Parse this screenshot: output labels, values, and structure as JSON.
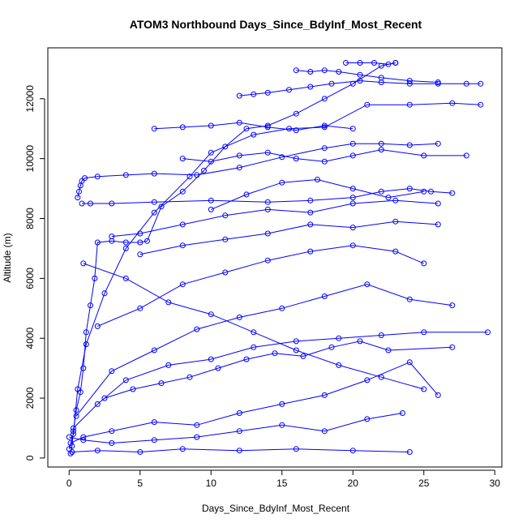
{
  "chart_data": {
    "type": "line",
    "title": "ATOM3 Northbound Days_Since_BdyInf_Most_Recent",
    "xlabel": "Days_Since_BdyInf_Most_Recent",
    "ylabel": "Altitude (m)",
    "xlim": [
      -1.5,
      30.5
    ],
    "ylim": [
      -300,
      13700
    ],
    "xticks": [
      "0",
      "5",
      "10",
      "15",
      "20",
      "25",
      "30"
    ],
    "yticks": [
      "0",
      "2000",
      "4000",
      "6000",
      "8000",
      "10000",
      "12000"
    ],
    "style": {
      "color": "#0000ff",
      "marker": "open-circle",
      "lines": true
    },
    "series": [
      {
        "points": [
          [
            0.1,
            150
          ],
          [
            0.2,
            400
          ],
          [
            0.3,
            900
          ],
          [
            0.5,
            1600
          ],
          [
            0.8,
            2200
          ],
          [
            1.0,
            3000
          ],
          [
            1.2,
            4200
          ],
          [
            1.5,
            5100
          ],
          [
            1.8,
            6000
          ],
          [
            2.0,
            7200
          ],
          [
            3.0,
            7250
          ],
          [
            4.0,
            7200
          ],
          [
            5.0,
            7200
          ],
          [
            5.5,
            7250
          ],
          [
            6.5,
            8400
          ],
          [
            8.0,
            8900
          ],
          [
            9.5,
            9600
          ],
          [
            11.0,
            10400
          ],
          [
            12.5,
            11000
          ],
          [
            14.0,
            11100
          ],
          [
            16.0,
            11500
          ],
          [
            18.0,
            12000
          ],
          [
            20.0,
            12500
          ],
          [
            22.0,
            13100
          ],
          [
            23.0,
            13200
          ]
        ]
      },
      {
        "points": [
          [
            0.0,
            300
          ],
          [
            0.3,
            800
          ],
          [
            0.6,
            2300
          ],
          [
            1.2,
            3800
          ],
          [
            2.5,
            5500
          ],
          [
            4.0,
            7000
          ],
          [
            6.0,
            8200
          ],
          [
            8.5,
            9400
          ],
          [
            10.0,
            10200
          ],
          [
            13.0,
            10800
          ],
          [
            15.5,
            11000
          ],
          [
            18.0,
            11050
          ],
          [
            21.0,
            11800
          ],
          [
            24.0,
            11800
          ],
          [
            27.0,
            11850
          ],
          [
            29.0,
            11800
          ]
        ]
      },
      {
        "points": [
          [
            0.6,
            8700
          ],
          [
            0.7,
            8900
          ],
          [
            0.8,
            9100
          ],
          [
            0.9,
            9250
          ],
          [
            1.1,
            9350
          ],
          [
            2.0,
            9400
          ],
          [
            4.0,
            9450
          ],
          [
            6.0,
            9500
          ],
          [
            9.0,
            9450
          ],
          [
            12.0,
            9700
          ],
          [
            15.0,
            10050
          ],
          [
            18.0,
            10350
          ],
          [
            20.0,
            10500
          ],
          [
            22.0,
            10500
          ],
          [
            24.0,
            10450
          ],
          [
            26.0,
            10500
          ]
        ]
      },
      {
        "points": [
          [
            0.9,
            8500
          ],
          [
            1.5,
            8500
          ],
          [
            3.0,
            8500
          ],
          [
            6.0,
            8550
          ],
          [
            10.0,
            8600
          ],
          [
            14.0,
            8550
          ],
          [
            17.0,
            8600
          ],
          [
            20.0,
            8700
          ],
          [
            22.0,
            8900
          ],
          [
            24.0,
            9000
          ],
          [
            25.5,
            8900
          ],
          [
            27.0,
            8850
          ]
        ]
      },
      {
        "points": [
          [
            0.2,
            200
          ],
          [
            2.0,
            250
          ],
          [
            5.0,
            200
          ],
          [
            8.0,
            300
          ],
          [
            12.0,
            250
          ],
          [
            16.0,
            300
          ],
          [
            20.0,
            250
          ],
          [
            24.0,
            200
          ]
        ]
      },
      {
        "points": [
          [
            0.1,
            500
          ],
          [
            1.0,
            700
          ],
          [
            3.0,
            900
          ],
          [
            6.0,
            1200
          ],
          [
            9.0,
            1100
          ],
          [
            12.0,
            1500
          ],
          [
            15.0,
            1800
          ],
          [
            18.0,
            2100
          ],
          [
            21.0,
            2600
          ],
          [
            24.0,
            3200
          ],
          [
            26.0,
            2100
          ]
        ]
      },
      {
        "points": [
          [
            0.3,
            1000
          ],
          [
            2.0,
            1800
          ],
          [
            4.0,
            2600
          ],
          [
            7.0,
            3100
          ],
          [
            10.0,
            3300
          ],
          [
            13.0,
            3700
          ],
          [
            16.0,
            3900
          ],
          [
            19.0,
            4000
          ],
          [
            22.0,
            4100
          ],
          [
            25.0,
            4200
          ],
          [
            29.5,
            4200
          ]
        ]
      },
      {
        "points": [
          [
            0.5,
            1400
          ],
          [
            3.0,
            2900
          ],
          [
            6.0,
            3600
          ],
          [
            9.0,
            4300
          ],
          [
            12.0,
            4700
          ],
          [
            15.0,
            5000
          ],
          [
            18.0,
            5400
          ],
          [
            21.0,
            5800
          ],
          [
            24.0,
            5300
          ],
          [
            27.0,
            5100
          ]
        ]
      },
      {
        "points": [
          [
            2.0,
            4400
          ],
          [
            5.0,
            5000
          ],
          [
            8.0,
            5800
          ],
          [
            11.0,
            6200
          ],
          [
            14.0,
            6600
          ],
          [
            17.0,
            6900
          ],
          [
            20.0,
            7100
          ],
          [
            23.0,
            6900
          ],
          [
            25.0,
            6500
          ]
        ]
      },
      {
        "points": [
          [
            6.0,
            11000
          ],
          [
            8.0,
            11050
          ],
          [
            10.0,
            11100
          ],
          [
            12.0,
            11200
          ],
          [
            14.0,
            11050
          ],
          [
            16.0,
            10950
          ],
          [
            18.0,
            11100
          ],
          [
            20.0,
            11000
          ]
        ]
      },
      {
        "points": [
          [
            12.0,
            12100
          ],
          [
            13.0,
            12150
          ],
          [
            14.0,
            12200
          ],
          [
            15.5,
            12300
          ],
          [
            17.0,
            12400
          ],
          [
            18.5,
            12500
          ],
          [
            20.5,
            12600
          ],
          [
            22.0,
            12550
          ],
          [
            24.0,
            12500
          ],
          [
            26.0,
            12500
          ],
          [
            28.0,
            12500
          ],
          [
            29.0,
            12500
          ]
        ]
      },
      {
        "points": [
          [
            19.5,
            13200
          ],
          [
            20.5,
            13200
          ],
          [
            21.5,
            13200
          ],
          [
            22.5,
            13150
          ],
          [
            23.0,
            13200
          ]
        ]
      },
      {
        "points": [
          [
            16.0,
            12950
          ],
          [
            17.0,
            12900
          ],
          [
            18.0,
            12950
          ],
          [
            19.0,
            12900
          ],
          [
            20.5,
            12800
          ],
          [
            22.0,
            12700
          ],
          [
            24.0,
            12600
          ],
          [
            26.0,
            12550
          ]
        ]
      },
      {
        "points": [
          [
            3.0,
            7400
          ],
          [
            5.0,
            7500
          ],
          [
            8.0,
            7800
          ],
          [
            11.0,
            8100
          ],
          [
            14.0,
            8300
          ],
          [
            17.0,
            8200
          ],
          [
            20.0,
            8500
          ],
          [
            23.0,
            8600
          ],
          [
            26.0,
            8500
          ]
        ]
      },
      {
        "points": [
          [
            1.0,
            6500
          ],
          [
            4.0,
            6000
          ],
          [
            7.0,
            5200
          ],
          [
            10.0,
            4800
          ],
          [
            13.0,
            4200
          ],
          [
            16.0,
            3600
          ],
          [
            19.0,
            3100
          ],
          [
            22.0,
            2700
          ],
          [
            25.0,
            2300
          ]
        ]
      },
      {
        "points": [
          [
            8.0,
            10000
          ],
          [
            10.0,
            9900
          ],
          [
            12.0,
            10100
          ],
          [
            14.0,
            10200
          ],
          [
            16.0,
            10000
          ],
          [
            18.0,
            9900
          ],
          [
            20.0,
            10100
          ],
          [
            22.0,
            10300
          ],
          [
            25.0,
            10100
          ],
          [
            28.0,
            10100
          ]
        ]
      },
      {
        "points": [
          [
            0.0,
            700
          ],
          [
            1.0,
            600
          ],
          [
            3.0,
            500
          ],
          [
            6.0,
            600
          ],
          [
            9.0,
            700
          ],
          [
            12.0,
            900
          ],
          [
            15.0,
            1100
          ],
          [
            18.0,
            900
          ],
          [
            21.0,
            1300
          ],
          [
            23.5,
            1500
          ]
        ]
      },
      {
        "points": [
          [
            5.0,
            6800
          ],
          [
            8.0,
            7100
          ],
          [
            11.0,
            7300
          ],
          [
            14.0,
            7500
          ],
          [
            17.0,
            7800
          ],
          [
            20.0,
            7700
          ],
          [
            23.0,
            7900
          ],
          [
            26.0,
            7800
          ]
        ]
      },
      {
        "points": [
          [
            10.0,
            8300
          ],
          [
            12.5,
            8800
          ],
          [
            15.0,
            9200
          ],
          [
            17.5,
            9300
          ],
          [
            20.0,
            9000
          ],
          [
            22.5,
            8700
          ],
          [
            25.0,
            8900
          ]
        ]
      },
      {
        "points": [
          [
            2.5,
            2000
          ],
          [
            4.5,
            2300
          ],
          [
            6.5,
            2500
          ],
          [
            8.5,
            2700
          ],
          [
            10.5,
            3000
          ],
          [
            12.5,
            3300
          ],
          [
            14.5,
            3500
          ],
          [
            16.5,
            3400
          ],
          [
            18.5,
            3700
          ],
          [
            20.5,
            3900
          ],
          [
            22.5,
            3600
          ],
          [
            27.0,
            3700
          ]
        ]
      }
    ]
  }
}
